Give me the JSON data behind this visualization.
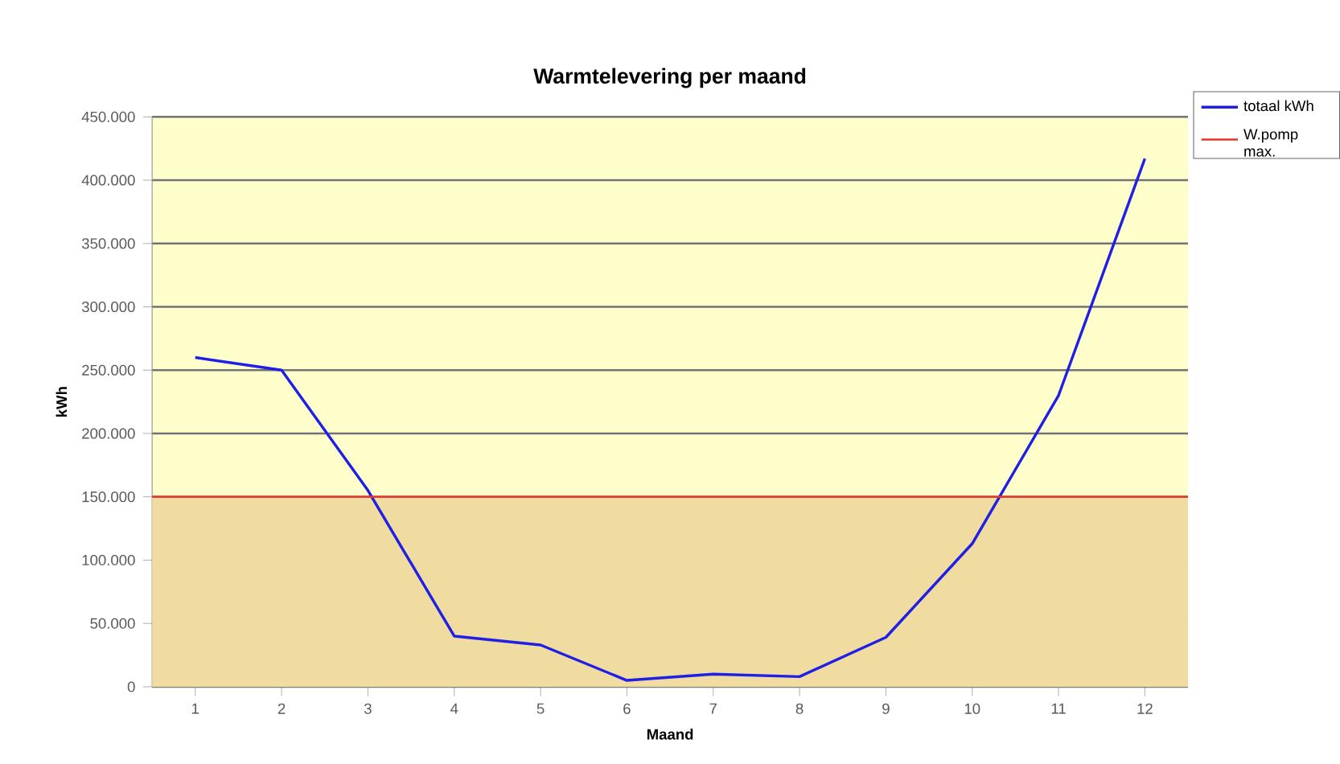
{
  "chart_data": {
    "type": "line",
    "title": "Warmtelevering per maand",
    "xlabel": "Maand",
    "ylabel": "kWh",
    "categories": [
      "1",
      "2",
      "3",
      "4",
      "5",
      "6",
      "7",
      "8",
      "9",
      "10",
      "11",
      "12"
    ],
    "series": [
      {
        "name": "totaal kWh",
        "color": "#1f1fe6",
        "values": [
          260000,
          250000,
          155000,
          40000,
          33000,
          5000,
          10000,
          8000,
          39000,
          113000,
          230000,
          417000
        ]
      }
    ],
    "ref_lines": [
      {
        "axis": "y",
        "value": 150000,
        "label": "W.pomp max.",
        "color": "#e8352a"
      }
    ],
    "bands": [
      {
        "axis": "y",
        "from": 0,
        "to": 150000,
        "color": "#f0dca0"
      }
    ],
    "ylim": [
      0,
      450000
    ],
    "yticks": [
      0,
      {
        "value": 50000,
        "label": "50.000"
      },
      {
        "value": 100000,
        "label": "100.000"
      },
      {
        "value": 150000,
        "label": "150.000"
      },
      {
        "value": 200000,
        "label": "200.000"
      },
      {
        "value": 250000,
        "label": "250.000"
      },
      {
        "value": 300000,
        "label": "300.000"
      },
      {
        "value": 350000,
        "label": "350.000"
      },
      {
        "value": 400000,
        "label": "400.000"
      },
      {
        "value": 450000,
        "label": "450.000"
      }
    ],
    "grid": "y",
    "legend": "top right",
    "marker": "none",
    "line_style": "solid"
  }
}
